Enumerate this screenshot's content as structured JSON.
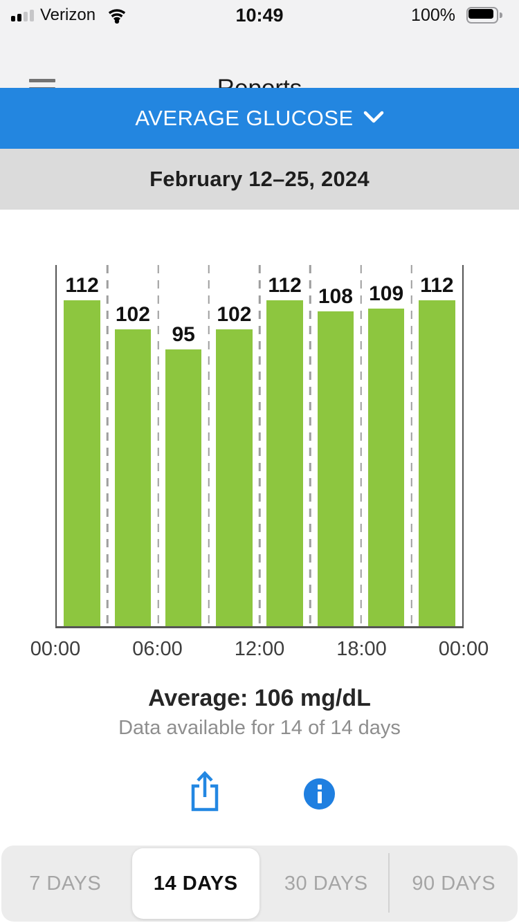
{
  "status_bar": {
    "carrier": "Verizon",
    "time": "10:49",
    "battery_percent": "100%",
    "signal_icon": "cellular-signal-2-of-4-bars",
    "wifi_icon": "wifi",
    "battery_icon": "battery-full"
  },
  "header": {
    "title": "Reports",
    "menu_icon": "hamburger-menu"
  },
  "metric_selector": {
    "label": "AVERAGE GLUCOSE",
    "chevron_icon": "chevron-down"
  },
  "date_range": {
    "label": "February 12–25, 2024"
  },
  "chart_data": {
    "type": "bar",
    "title": "",
    "xlabel": "",
    "ylabel": "",
    "values": [
      112,
      102,
      95,
      102,
      112,
      108,
      109,
      112
    ],
    "bar_labels": [
      "112",
      "102",
      "95",
      "102",
      "112",
      "108",
      "109",
      "112"
    ],
    "x_tick_labels": [
      "00:00",
      "06:00",
      "12:00",
      "18:00",
      "00:00"
    ],
    "x_tick_positions_pct": [
      0,
      25,
      50,
      75,
      100
    ],
    "ylim": [
      0,
      124
    ],
    "bar_color": "#8DC63F",
    "grid": "vertical-dashed",
    "legend": "none"
  },
  "summary": {
    "average": "Average: 106 mg/dL",
    "availability": "Data available for 14 of 14 days"
  },
  "actions": {
    "share_icon": "share-export",
    "info_icon": "info-circle"
  },
  "range_tabs": {
    "options": [
      {
        "label": "7 DAYS",
        "selected": false
      },
      {
        "label": "14 DAYS",
        "selected": true
      },
      {
        "label": "30 DAYS",
        "selected": false
      },
      {
        "label": "90 DAYS",
        "selected": false
      }
    ]
  },
  "colors": {
    "accent_blue": "#2386E0",
    "icon_blue": "#1F7FE0",
    "bar_green": "#8DC63F",
    "date_bar_gray": "#DBDBDB",
    "chrome_gray": "#F2F2F3",
    "tabbar_gray": "#ECECEC"
  }
}
